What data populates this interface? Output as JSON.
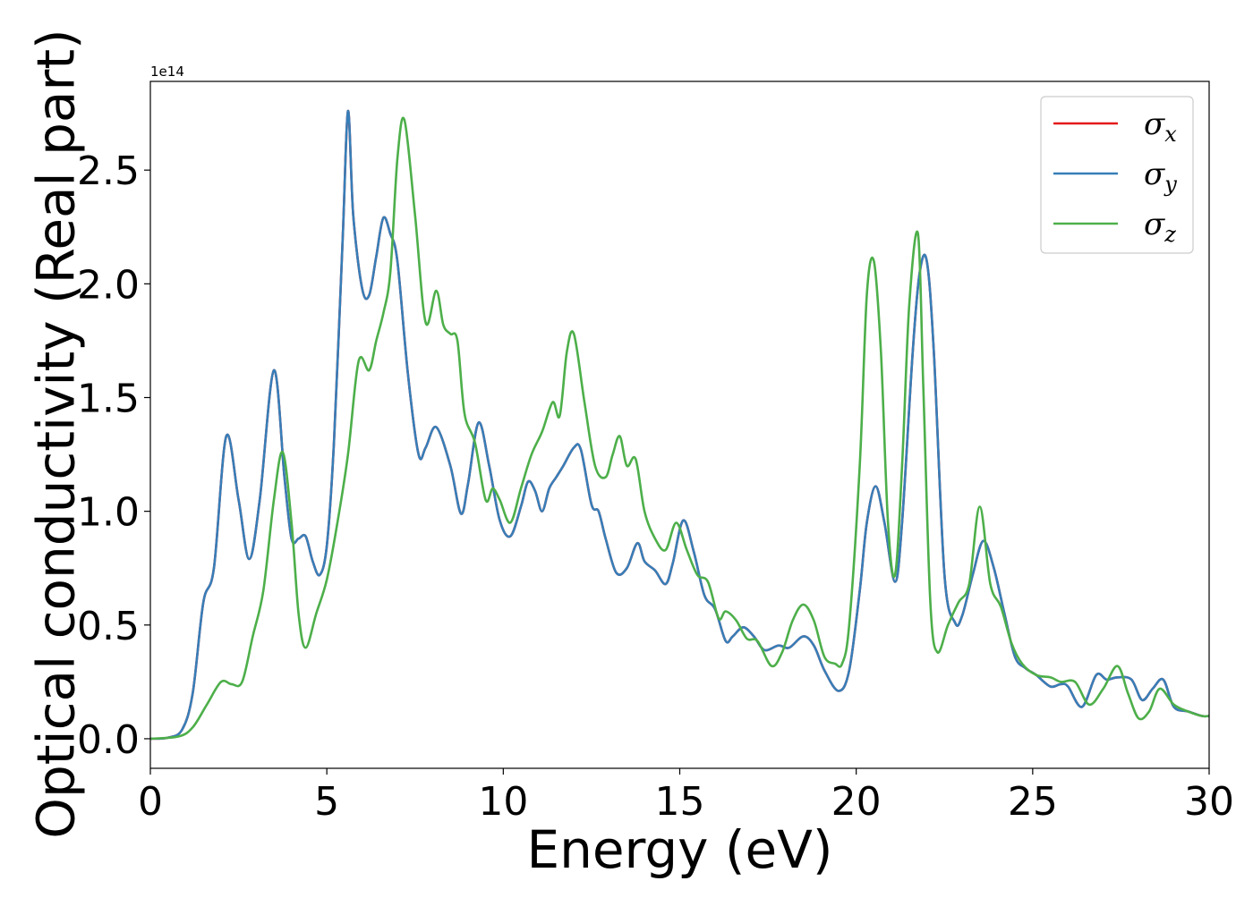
{
  "chart_data": {
    "type": "line",
    "title": "",
    "xlabel": "Energy (eV)",
    "ylabel": "Optical conductivity (Real part)",
    "y_offset_label": "1e14",
    "xlim": [
      0,
      30
    ],
    "ylim": [
      -0.13,
      2.89
    ],
    "xticks": [
      0,
      5,
      10,
      15,
      20,
      25,
      30
    ],
    "xtick_labels": [
      "0",
      "5",
      "10",
      "15",
      "20",
      "25",
      "30"
    ],
    "yticks": [
      0.0,
      0.5,
      1.0,
      1.5,
      2.0,
      2.5
    ],
    "ytick_labels": [
      "0.0",
      "0.5",
      "1.0",
      "1.5",
      "2.0",
      "2.5"
    ],
    "grid": false,
    "legend_position": "top-right",
    "series": [
      {
        "name": "σx",
        "legend_symbol": "σ",
        "legend_sub": "x",
        "color": "#e41a1c",
        "x": [
          0,
          0.5,
          0.9,
          1.2,
          1.5,
          1.8,
          2.15,
          2.5,
          2.8,
          3.1,
          3.5,
          3.8,
          4.0,
          4.2,
          4.4,
          4.6,
          4.8,
          5.0,
          5.2,
          5.45,
          5.6,
          5.75,
          6.0,
          6.2,
          6.4,
          6.6,
          6.8,
          7.0,
          7.3,
          7.6,
          7.8,
          8.1,
          8.5,
          8.8,
          9.0,
          9.3,
          9.6,
          9.9,
          10.2,
          10.5,
          10.7,
          10.9,
          11.1,
          11.3,
          11.5,
          11.7,
          12.0,
          12.2,
          12.5,
          12.7,
          12.9,
          13.2,
          13.5,
          13.8,
          14.0,
          14.3,
          14.6,
          14.8,
          15.1,
          15.4,
          15.7,
          16.0,
          16.3,
          16.5,
          16.8,
          17.1,
          17.4,
          17.8,
          18.1,
          18.5,
          18.8,
          19.1,
          19.5,
          19.8,
          20.1,
          20.3,
          20.55,
          20.8,
          21.1,
          21.3,
          21.6,
          21.8,
          22.0,
          22.2,
          22.5,
          22.8,
          23.0,
          23.3,
          23.6,
          23.9,
          24.2,
          24.5,
          24.8,
          25.1,
          25.5,
          25.8,
          26.0,
          26.4,
          26.8,
          27.1,
          27.4,
          27.8,
          28.1,
          28.4,
          28.7,
          29.0,
          29.4,
          29.8,
          30.0
        ],
        "y": [
          0.0,
          0.005,
          0.04,
          0.2,
          0.6,
          0.75,
          1.33,
          1.05,
          0.79,
          1.05,
          1.62,
          1.15,
          0.88,
          0.88,
          0.89,
          0.78,
          0.72,
          0.85,
          1.3,
          2.2,
          2.76,
          2.3,
          1.98,
          1.95,
          2.12,
          2.29,
          2.22,
          2.1,
          1.6,
          1.25,
          1.28,
          1.37,
          1.2,
          0.99,
          1.12,
          1.39,
          1.2,
          0.96,
          0.89,
          1.02,
          1.13,
          1.09,
          1.0,
          1.1,
          1.15,
          1.2,
          1.28,
          1.27,
          1.03,
          1.0,
          0.88,
          0.73,
          0.75,
          0.86,
          0.78,
          0.74,
          0.68,
          0.77,
          0.96,
          0.82,
          0.63,
          0.57,
          0.43,
          0.45,
          0.49,
          0.45,
          0.39,
          0.41,
          0.4,
          0.45,
          0.41,
          0.3,
          0.21,
          0.3,
          0.65,
          0.95,
          1.11,
          0.95,
          0.69,
          0.95,
          1.7,
          2.05,
          2.1,
          1.7,
          0.72,
          0.51,
          0.54,
          0.72,
          0.87,
          0.75,
          0.55,
          0.36,
          0.31,
          0.28,
          0.23,
          0.24,
          0.23,
          0.14,
          0.28,
          0.26,
          0.27,
          0.26,
          0.17,
          0.22,
          0.26,
          0.14,
          0.12,
          0.1,
          0.1
        ]
      },
      {
        "name": "σy",
        "legend_symbol": "σ",
        "legend_sub": "y",
        "color": "#377eb8",
        "x": [
          0,
          0.5,
          0.9,
          1.2,
          1.5,
          1.8,
          2.15,
          2.5,
          2.8,
          3.1,
          3.5,
          3.8,
          4.0,
          4.2,
          4.4,
          4.6,
          4.8,
          5.0,
          5.2,
          5.45,
          5.6,
          5.75,
          6.0,
          6.2,
          6.4,
          6.6,
          6.8,
          7.0,
          7.3,
          7.6,
          7.8,
          8.1,
          8.5,
          8.8,
          9.0,
          9.3,
          9.6,
          9.9,
          10.2,
          10.5,
          10.7,
          10.9,
          11.1,
          11.3,
          11.5,
          11.7,
          12.0,
          12.2,
          12.5,
          12.7,
          12.9,
          13.2,
          13.5,
          13.8,
          14.0,
          14.3,
          14.6,
          14.8,
          15.1,
          15.4,
          15.7,
          16.0,
          16.3,
          16.5,
          16.8,
          17.1,
          17.4,
          17.8,
          18.1,
          18.5,
          18.8,
          19.1,
          19.5,
          19.8,
          20.1,
          20.3,
          20.55,
          20.8,
          21.1,
          21.3,
          21.6,
          21.8,
          22.0,
          22.2,
          22.5,
          22.8,
          23.0,
          23.3,
          23.6,
          23.9,
          24.2,
          24.5,
          24.8,
          25.1,
          25.5,
          25.8,
          26.0,
          26.4,
          26.8,
          27.1,
          27.4,
          27.8,
          28.1,
          28.4,
          28.7,
          29.0,
          29.4,
          29.8,
          30.0
        ],
        "y": [
          0.0,
          0.005,
          0.04,
          0.2,
          0.6,
          0.75,
          1.33,
          1.05,
          0.79,
          1.05,
          1.62,
          1.15,
          0.88,
          0.88,
          0.89,
          0.78,
          0.72,
          0.85,
          1.3,
          2.2,
          2.76,
          2.3,
          1.98,
          1.95,
          2.12,
          2.29,
          2.22,
          2.1,
          1.6,
          1.25,
          1.28,
          1.37,
          1.2,
          0.99,
          1.12,
          1.39,
          1.2,
          0.96,
          0.89,
          1.02,
          1.13,
          1.09,
          1.0,
          1.1,
          1.15,
          1.2,
          1.28,
          1.27,
          1.03,
          1.0,
          0.88,
          0.73,
          0.75,
          0.86,
          0.78,
          0.74,
          0.68,
          0.77,
          0.96,
          0.82,
          0.63,
          0.57,
          0.43,
          0.45,
          0.49,
          0.45,
          0.39,
          0.41,
          0.4,
          0.45,
          0.41,
          0.3,
          0.21,
          0.3,
          0.65,
          0.95,
          1.11,
          0.95,
          0.69,
          0.95,
          1.7,
          2.05,
          2.1,
          1.7,
          0.72,
          0.51,
          0.54,
          0.72,
          0.87,
          0.75,
          0.55,
          0.36,
          0.31,
          0.28,
          0.23,
          0.24,
          0.23,
          0.14,
          0.28,
          0.26,
          0.27,
          0.26,
          0.17,
          0.22,
          0.26,
          0.14,
          0.12,
          0.1,
          0.1
        ]
      },
      {
        "name": "σz",
        "legend_symbol": "σ",
        "legend_sub": "z",
        "color": "#4daf4a",
        "x": [
          0,
          0.8,
          1.2,
          1.6,
          2.0,
          2.3,
          2.6,
          2.9,
          3.2,
          3.5,
          3.75,
          4.0,
          4.2,
          4.4,
          4.7,
          5.0,
          5.3,
          5.6,
          5.9,
          6.2,
          6.4,
          6.6,
          6.8,
          7.0,
          7.2,
          7.5,
          7.8,
          8.1,
          8.3,
          8.5,
          8.7,
          8.9,
          9.2,
          9.5,
          9.7,
          9.9,
          10.2,
          10.5,
          10.8,
          11.1,
          11.4,
          11.6,
          11.8,
          12.0,
          12.3,
          12.6,
          12.9,
          13.1,
          13.3,
          13.5,
          13.75,
          14.0,
          14.3,
          14.6,
          14.9,
          15.2,
          15.5,
          15.8,
          16.1,
          16.3,
          16.6,
          16.9,
          17.2,
          17.6,
          17.9,
          18.2,
          18.5,
          18.8,
          19.1,
          19.4,
          19.6,
          19.8,
          20.1,
          20.3,
          20.5,
          20.7,
          20.9,
          21.1,
          21.3,
          21.5,
          21.75,
          21.9,
          22.1,
          22.3,
          22.6,
          22.9,
          23.2,
          23.5,
          23.8,
          24.1,
          24.4,
          24.7,
          25.1,
          25.5,
          25.8,
          26.2,
          26.6,
          27.0,
          27.4,
          27.7,
          28.0,
          28.3,
          28.6,
          29.0,
          29.4,
          29.8,
          30.0
        ],
        "y": [
          0.0,
          0.01,
          0.05,
          0.15,
          0.25,
          0.24,
          0.25,
          0.45,
          0.65,
          1.05,
          1.26,
          0.95,
          0.55,
          0.4,
          0.55,
          0.7,
          0.95,
          1.25,
          1.66,
          1.62,
          1.75,
          1.87,
          2.05,
          2.55,
          2.72,
          2.3,
          1.83,
          1.97,
          1.82,
          1.78,
          1.75,
          1.43,
          1.3,
          1.05,
          1.1,
          1.05,
          0.95,
          1.1,
          1.25,
          1.35,
          1.48,
          1.42,
          1.7,
          1.78,
          1.48,
          1.2,
          1.15,
          1.25,
          1.33,
          1.2,
          1.23,
          1.0,
          0.88,
          0.83,
          0.95,
          0.83,
          0.72,
          0.69,
          0.53,
          0.56,
          0.52,
          0.44,
          0.43,
          0.32,
          0.38,
          0.52,
          0.59,
          0.52,
          0.36,
          0.33,
          0.33,
          0.5,
          1.2,
          1.95,
          2.1,
          1.7,
          0.95,
          0.72,
          1.2,
          1.9,
          2.22,
          1.55,
          0.6,
          0.38,
          0.5,
          0.6,
          0.68,
          1.02,
          0.68,
          0.58,
          0.42,
          0.33,
          0.28,
          0.27,
          0.25,
          0.25,
          0.15,
          0.22,
          0.32,
          0.2,
          0.09,
          0.12,
          0.22,
          0.15,
          0.12,
          0.1,
          0.1
        ]
      }
    ]
  }
}
